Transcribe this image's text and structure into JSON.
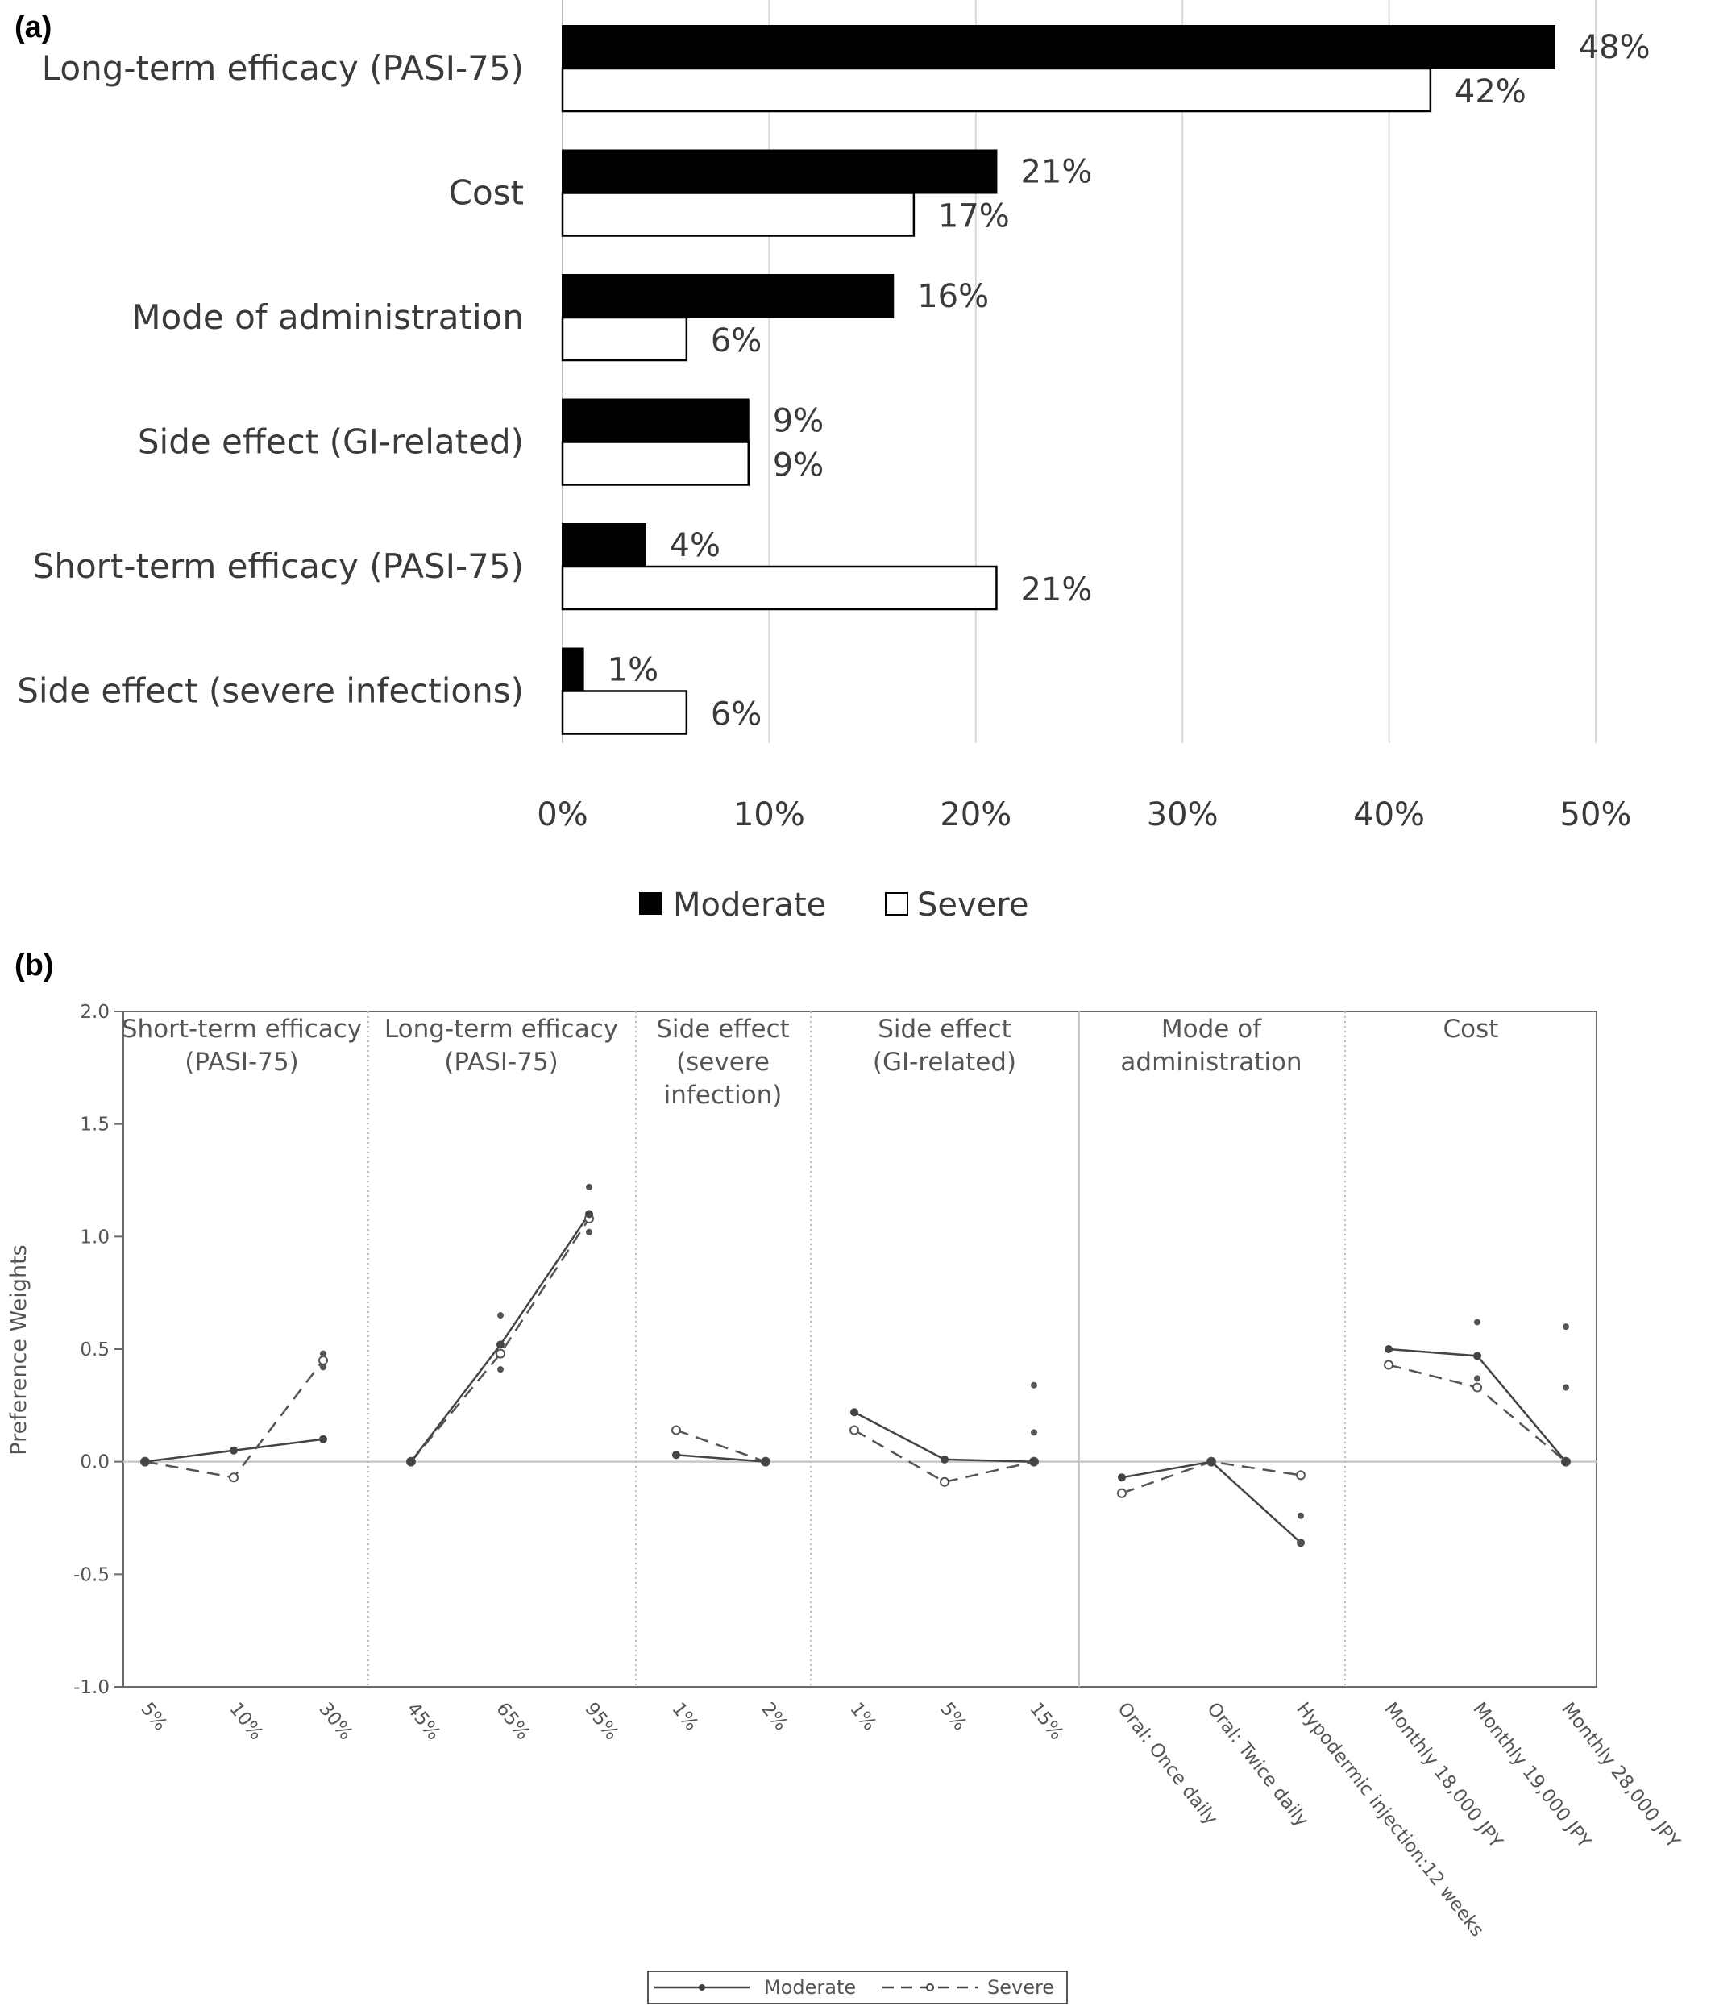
{
  "chart_data": [
    {
      "panel": "(a)",
      "type": "bar",
      "orientation": "horizontal",
      "categories": [
        "Long-term efficacy (PASI-75)",
        "Cost",
        "Mode of administration",
        "Side effect (GI-related)",
        "Short-term efficacy (PASI-75)",
        "Side effect (severe infections)"
      ],
      "series": [
        {
          "name": "Moderate",
          "color": "#000000",
          "values": [
            48,
            21,
            16,
            9,
            4,
            1
          ]
        },
        {
          "name": "Severe",
          "color": "#ffffff",
          "values": [
            42,
            17,
            6,
            9,
            21,
            6
          ]
        }
      ],
      "data_labels": {
        "Moderate": [
          "48%",
          "21%",
          "16%",
          "9%",
          "4%",
          "1%"
        ],
        "Severe": [
          "42%",
          "17%",
          "6%",
          "9%",
          "21%",
          "6%"
        ]
      },
      "xlim": [
        0,
        50
      ],
      "xticks": [
        "0%",
        "10%",
        "20%",
        "30%",
        "40%",
        "50%"
      ],
      "grid": "vertical",
      "legend": "bottom"
    },
    {
      "panel": "(b)",
      "type": "line",
      "ylabel": "Preference Weights",
      "ylim": [
        -1.0,
        2.0
      ],
      "yticks": [
        "-1.0",
        "-0.5",
        "0.0",
        "0.5",
        "1.0",
        "1.5",
        "2.0"
      ],
      "groups": [
        {
          "title": [
            "Short-term efficacy",
            "(PASI-75)"
          ],
          "levels": [
            "5%",
            "10%",
            "30%"
          ],
          "moderate": [
            0.0,
            0.05,
            0.1
          ],
          "severe": [
            0.0,
            -0.07,
            0.45
          ],
          "ci": [
            [
              0.42,
              0.48
            ]
          ]
        },
        {
          "title": [
            "Long-term efficacy",
            "(PASI-75)"
          ],
          "levels": [
            "45%",
            "65%",
            "95%"
          ],
          "moderate": [
            0.0,
            0.52,
            1.1
          ],
          "severe": [
            0.0,
            0.48,
            1.08
          ],
          "ci": [
            [
              0.41,
              0.65
            ],
            [
              1.02,
              1.22
            ]
          ]
        },
        {
          "title": [
            "Side effect",
            "(severe",
            "infection)"
          ],
          "levels": [
            "1%",
            "2%"
          ],
          "moderate": [
            0.03,
            0.0
          ],
          "severe": [
            0.14,
            0.0
          ],
          "ci": []
        },
        {
          "title": [
            "Side effect",
            "(GI-related)"
          ],
          "levels": [
            "1%",
            "5%",
            "15%"
          ],
          "moderate": [
            0.22,
            0.01,
            0.0
          ],
          "severe": [
            0.14,
            -0.09,
            0.0
          ],
          "ci": [
            [
              0.13,
              0.34
            ]
          ]
        },
        {
          "title": [
            "Mode of",
            "administration"
          ],
          "levels": [
            "Oral: Once daily",
            "Oral: Twice daily",
            "Hypodermic injection:12 weeks"
          ],
          "moderate": [
            -0.07,
            0.0,
            -0.36
          ],
          "severe": [
            -0.14,
            0.0,
            -0.06
          ],
          "ci": [
            [
              -0.36,
              -0.24
            ]
          ]
        },
        {
          "title": [
            "Cost"
          ],
          "levels": [
            "Monthly 18,000 JPY",
            "Monthly 19,000 JPY",
            "Monthly 28,000 JPY"
          ],
          "moderate": [
            0.5,
            0.47,
            0.0
          ],
          "severe": [
            0.43,
            0.33,
            0.0
          ],
          "ci": [
            [
              0.37,
              0.62
            ],
            [
              0.33,
              0.6
            ]
          ]
        }
      ],
      "legend": {
        "position": "bottom-center",
        "entries": [
          {
            "name": "Moderate",
            "style": "solid"
          },
          {
            "name": "Severe",
            "style": "dashed"
          }
        ]
      }
    }
  ]
}
